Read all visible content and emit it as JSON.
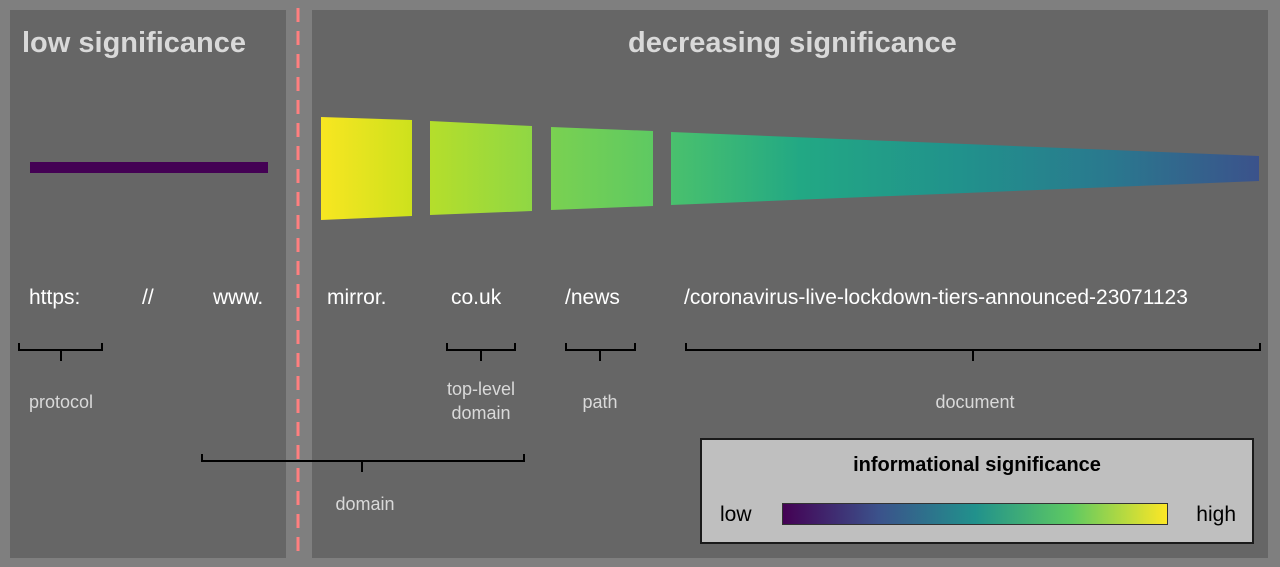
{
  "headings": {
    "left": "low significance",
    "right": "decreasing significance"
  },
  "url_parts": [
    "https:",
    "//",
    "www.",
    "mirror.",
    "co.uk",
    "/news",
    "/coronavirus-live-lockdown-tiers-announced-23071123"
  ],
  "labels": {
    "protocol": "protocol",
    "top_level_domain": "top-level\ndomain",
    "path": "path",
    "document": "document",
    "domain": "domain"
  },
  "legend": {
    "title": "informational significance",
    "low": "low",
    "high": "high"
  },
  "colors": {
    "panel": "#666666",
    "background": "#7f7f7f",
    "divider": "#ff7f7f",
    "low_bar": "#440154",
    "gradient": [
      "#440154",
      "#3b528b",
      "#21918c",
      "#5ec962",
      "#fde725"
    ]
  }
}
